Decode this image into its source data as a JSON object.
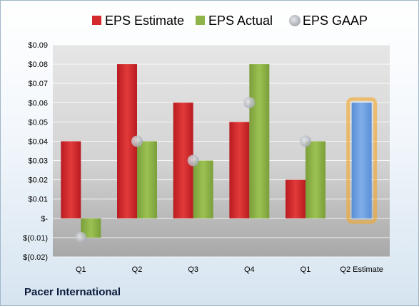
{
  "company": "Pacer International",
  "chart_data": {
    "type": "bar",
    "title": "",
    "xlabel": "",
    "ylabel": "",
    "categories": [
      "Q1",
      "Q2",
      "Q3",
      "Q4",
      "Q1",
      "Q2 Estimate"
    ],
    "ylim": [
      -0.02,
      0.09
    ],
    "yticks": [
      -0.02,
      -0.01,
      0,
      0.01,
      0.02,
      0.03,
      0.04,
      0.05,
      0.06,
      0.07,
      0.08,
      0.09
    ],
    "ytick_labels": [
      "$(0.02)",
      "$(0.01)",
      "$-",
      "$0.01",
      "$0.02",
      "$0.03",
      "$0.04",
      "$0.05",
      "$0.06",
      "$0.07",
      "$0.08",
      "$0.09"
    ],
    "legend_position": "top",
    "series": [
      {
        "name": "EPS Estimate",
        "kind": "bar",
        "color": "#d42a2e",
        "values": [
          0.04,
          0.08,
          0.06,
          0.05,
          0.02,
          null
        ]
      },
      {
        "name": "EPS Actual",
        "kind": "bar",
        "color": "#8fb44a",
        "values": [
          -0.01,
          0.04,
          0.03,
          0.08,
          0.04,
          null
        ]
      },
      {
        "name": "EPS GAAP",
        "kind": "marker",
        "color": "#c8cbd0",
        "values": [
          -0.01,
          0.04,
          0.03,
          0.06,
          0.04,
          null
        ]
      }
    ],
    "estimate": {
      "category_index": 5,
      "value": 0.06,
      "color": "#6f9fe0",
      "highlight_color": "#f5a623"
    }
  }
}
